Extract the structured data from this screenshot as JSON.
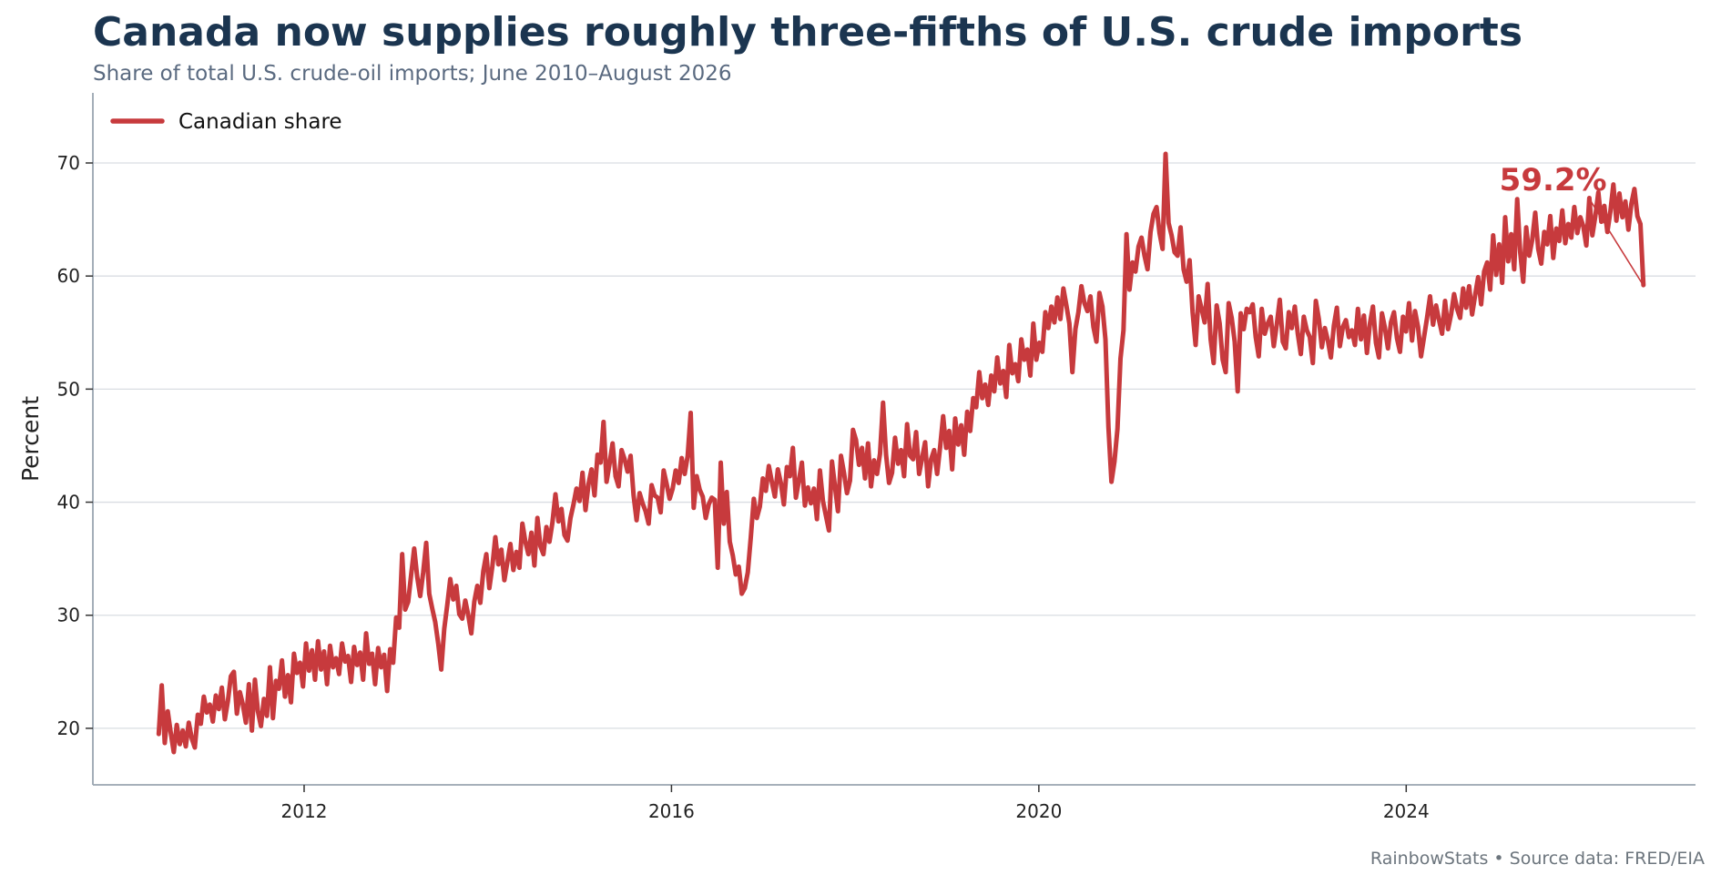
{
  "header": {
    "title": "Canada now supplies roughly three-fifths of U.S. crude imports",
    "subtitle": "Share of total U.S. crude-oil imports; June 2010–August 2026"
  },
  "footer": {
    "source": "RainbowStats • Source data: FRED/EIA"
  },
  "colors": {
    "series": "#c73a3d",
    "grid": "#d9dde2",
    "axis": "#9aa5b1",
    "title": "#1b3550",
    "subtitle": "#5a6a80"
  },
  "chart_data": {
    "type": "line",
    "title": "Canada now supplies roughly three-fifths of U.S. crude imports",
    "subtitle": "Share of total U.S. crude-oil imports; June 2010–August 2026",
    "ylabel": "Percent",
    "xlabel": "",
    "xlim": [
      2009.7,
      2027.15
    ],
    "ylim": [
      15,
      76.2
    ],
    "x_ticks": [
      2012,
      2016,
      2020,
      2024
    ],
    "x_tick_labels": [
      "2012",
      "2016",
      "2020",
      "2024"
    ],
    "y_ticks": [
      20,
      30,
      40,
      50,
      60,
      70
    ],
    "y_tick_labels": [
      "20",
      "30",
      "40",
      "50",
      "60",
      "70"
    ],
    "grid": "horizontal",
    "legend": {
      "position": "top-left",
      "entries": [
        "Canadian share"
      ]
    },
    "annotation": {
      "text": "59.2%",
      "x": 2026.58,
      "y": 59.2
    },
    "series": [
      {
        "name": "Canadian share",
        "x_start": 2010.417,
        "x_end": 2026.583,
        "values": [
          19.5,
          23.8,
          18.7,
          21.5,
          19.6,
          17.9,
          20.3,
          18.6,
          19.8,
          18.4,
          20.5,
          19.1,
          18.3,
          21.2,
          20.4,
          22.8,
          21.4,
          22.1,
          20.6,
          22.9,
          21.7,
          23.6,
          20.8,
          22.4,
          24.6,
          25.0,
          21.3,
          23.2,
          22.1,
          20.5,
          23.9,
          19.8,
          24.3,
          21.5,
          20.2,
          22.6,
          21.1,
          25.4,
          20.9,
          24.2,
          23.5,
          26.0,
          22.8,
          24.7,
          22.3,
          26.6,
          24.9,
          25.8,
          23.7,
          27.5,
          25.1,
          26.9,
          24.3,
          27.7,
          25.2,
          26.8,
          23.9,
          27.3,
          25.4,
          26.2,
          24.8,
          27.5,
          25.9,
          26.4,
          24.1,
          27.2,
          25.6,
          26.7,
          24.3,
          28.4,
          25.7,
          26.6,
          23.9,
          27.1,
          25.4,
          26.5,
          23.3,
          27.0,
          25.8,
          29.8,
          28.9,
          35.4,
          30.5,
          31.2,
          33.6,
          35.9,
          33.4,
          31.7,
          33.8,
          36.4,
          31.9,
          30.6,
          29.4,
          27.5,
          25.2,
          28.8,
          30.9,
          33.2,
          31.4,
          32.6,
          30.1,
          29.7,
          31.3,
          30.0,
          28.4,
          31.2,
          32.6,
          31.1,
          33.9,
          35.4,
          32.4,
          34.3,
          36.9,
          34.5,
          35.8,
          33.1,
          34.7,
          36.3,
          34.0,
          35.6,
          34.2,
          38.1,
          36.5,
          35.4,
          37.3,
          34.4,
          38.6,
          36.1,
          35.4,
          37.8,
          36.5,
          38.2,
          40.7,
          38.3,
          39.4,
          37.1,
          36.6,
          38.6,
          39.8,
          41.2,
          40.1,
          42.6,
          39.3,
          41.6,
          42.9,
          40.6,
          44.2,
          43.5,
          47.1,
          41.8,
          43.4,
          45.2,
          42.3,
          41.4,
          44.6,
          43.8,
          42.7,
          44.1,
          40.6,
          38.4,
          40.8,
          39.9,
          39.2,
          38.1,
          41.5,
          40.6,
          40.4,
          39.1,
          42.8,
          41.6,
          40.3,
          41.2,
          42.8,
          41.7,
          43.9,
          42.5,
          44.1,
          47.9,
          39.5,
          42.3,
          41.1,
          40.5,
          38.6,
          39.8,
          40.4,
          40.2,
          34.2,
          43.5,
          38.1,
          40.9,
          36.5,
          35.3,
          33.6,
          34.3,
          31.9,
          32.4,
          33.8,
          36.9,
          40.3,
          38.6,
          39.6,
          42.1,
          41.0,
          43.2,
          41.8,
          40.5,
          42.9,
          41.7,
          39.8,
          43.1,
          42.3,
          44.8,
          40.4,
          41.9,
          43.5,
          39.7,
          41.3,
          39.9,
          41.2,
          38.5,
          42.8,
          40.1,
          38.8,
          37.5,
          43.6,
          41.4,
          39.2,
          44.1,
          42.6,
          40.8,
          41.9,
          46.4,
          45.5,
          43.3,
          44.8,
          42.1,
          45.2,
          41.4,
          43.7,
          42.5,
          44.3,
          48.8,
          44.2,
          41.7,
          42.6,
          45.7,
          43.4,
          44.6,
          42.3,
          46.9,
          44.1,
          43.8,
          46.2,
          42.5,
          43.9,
          45.3,
          41.4,
          43.8,
          44.6,
          42.5,
          44.9,
          47.6,
          44.8,
          46.3,
          42.9,
          47.4,
          45.1,
          46.8,
          44.2,
          48.0,
          46.3,
          49.2,
          48.4,
          51.5,
          49.2,
          50.4,
          48.6,
          51.2,
          49.8,
          52.8,
          50.5,
          51.6,
          49.3,
          53.9,
          51.4,
          52.2,
          50.7,
          54.4,
          52.6,
          53.5,
          51.2,
          55.8,
          52.6,
          54.1,
          53.3,
          56.8,
          55.4,
          57.3,
          55.9,
          58.1,
          56.2,
          58.9,
          57.4,
          55.8,
          51.5,
          55.3,
          56.8,
          59.1,
          57.6,
          56.9,
          58.2,
          55.5,
          54.2,
          58.5,
          57.3,
          54.4,
          46.6,
          41.8,
          43.6,
          46.5,
          52.7,
          55.2,
          63.7,
          58.8,
          61.2,
          60.4,
          62.6,
          63.4,
          61.8,
          60.6,
          63.9,
          65.5,
          66.1,
          63.8,
          62.4,
          70.8,
          64.7,
          63.6,
          62.1,
          61.8,
          64.3,
          60.6,
          59.5,
          61.4,
          56.8,
          53.9,
          58.2,
          57.1,
          55.9,
          59.3,
          54.4,
          52.3,
          57.4,
          55.8,
          52.6,
          51.5,
          57.6,
          56.3,
          54.2,
          49.8,
          56.7,
          55.3,
          57.1,
          56.8,
          57.5,
          54.6,
          52.9,
          57.1,
          54.9,
          55.8,
          56.4,
          53.8,
          55.7,
          57.9,
          54.2,
          53.6,
          56.8,
          55.4,
          57.3,
          54.9,
          53.1,
          56.4,
          55.2,
          54.6,
          52.3,
          57.8,
          56.2,
          53.7,
          55.4,
          54.3,
          52.8,
          55.6,
          57.2,
          53.8,
          55.5,
          56.1,
          54.6,
          55.2,
          53.9,
          57.1,
          54.4,
          56.5,
          53.2,
          55.8,
          57.3,
          54.1,
          52.8,
          56.7,
          55.4,
          53.6,
          55.9,
          56.8,
          54.5,
          53.3,
          56.4,
          55.1,
          57.6,
          54.3,
          56.9,
          55.5,
          52.9,
          54.6,
          56.3,
          58.2,
          55.7,
          57.4,
          56.1,
          54.9,
          57.8,
          55.3,
          56.6,
          58.4,
          57.1,
          56.3,
          58.9,
          57.2,
          59.1,
          56.6,
          58.3,
          59.9,
          57.5,
          60.4,
          61.2,
          58.8,
          63.6,
          60.1,
          62.8,
          59.4,
          65.2,
          61.3,
          63.7,
          60.6,
          66.8,
          62.1,
          59.5,
          64.3,
          61.8,
          63.2,
          65.6,
          62.4,
          61.1,
          63.9,
          62.8,
          65.3,
          61.6,
          64.2,
          63.1,
          65.8,
          62.9,
          64.6,
          63.4,
          66.1,
          63.8,
          65.2,
          64.4,
          62.7,
          66.9,
          63.6,
          65.3,
          67.4,
          64.8,
          66.2,
          63.9,
          65.7,
          68.1,
          64.9,
          67.3,
          65.2,
          66.6,
          64.1,
          66.4,
          67.7,
          65.3,
          64.6,
          59.2
        ]
      }
    ]
  }
}
